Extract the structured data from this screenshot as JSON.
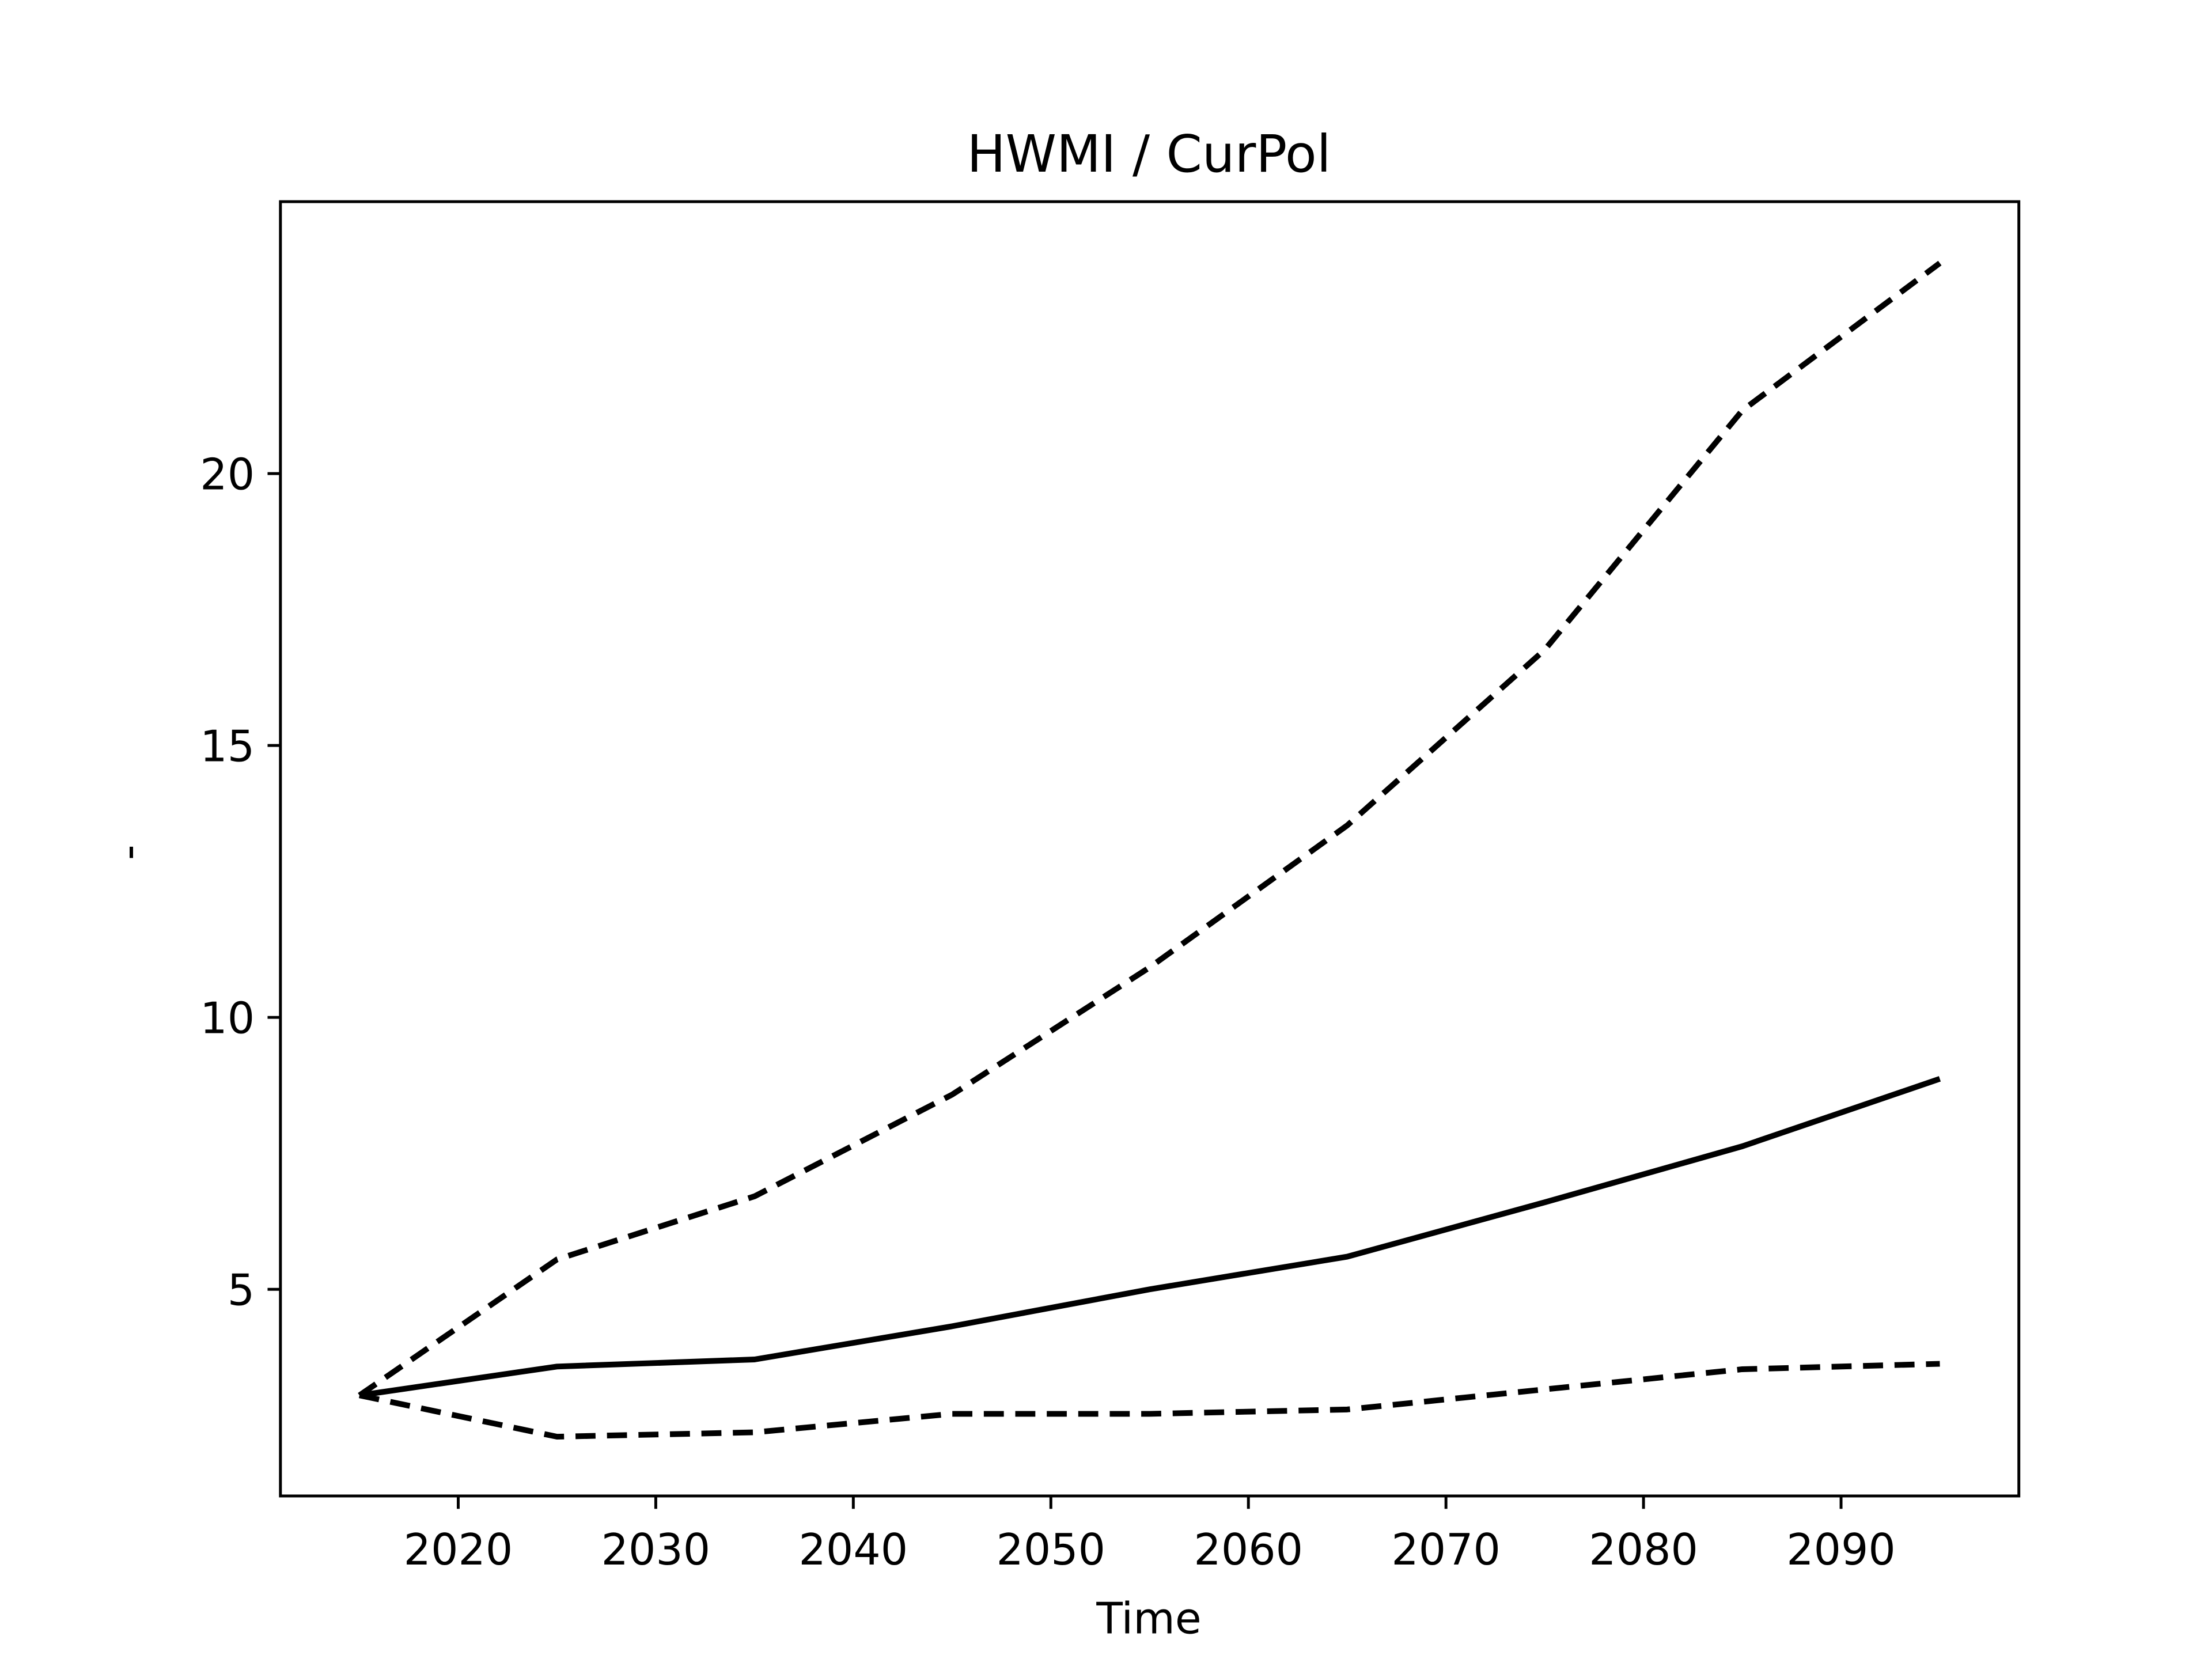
{
  "chart_data": {
    "type": "line",
    "title": "HWMI / CurPol",
    "x_label": "Time",
    "y_label": "-",
    "x": [
      2015,
      2025,
      2035,
      2045,
      2055,
      2065,
      2075,
      2085,
      2095
    ],
    "series": [
      {
        "color": "#000000",
        "dashed": false,
        "values": [
          3.05,
          3.58,
          3.71,
          4.32,
          5.0,
          5.6,
          6.6,
          7.63,
          8.87
        ]
      },
      {
        "color": "#000000",
        "dashed": true,
        "values": [
          3.05,
          5.55,
          6.71,
          8.58,
          10.92,
          13.53,
          16.76,
          21.16,
          23.87
        ]
      },
      {
        "color": "#000000",
        "dashed": true,
        "values": [
          3.05,
          2.29,
          2.37,
          2.71,
          2.71,
          2.79,
          3.16,
          3.53,
          3.63
        ]
      }
    ],
    "xlim": [
      2011,
      2099
    ],
    "xticks": [
      2020,
      2030,
      2040,
      2050,
      2060,
      2070,
      2080,
      2090
    ],
    "ylim": [
      1.2,
      25.0
    ],
    "yticks": [
      5,
      10,
      15,
      20
    ],
    "grid": false
  }
}
